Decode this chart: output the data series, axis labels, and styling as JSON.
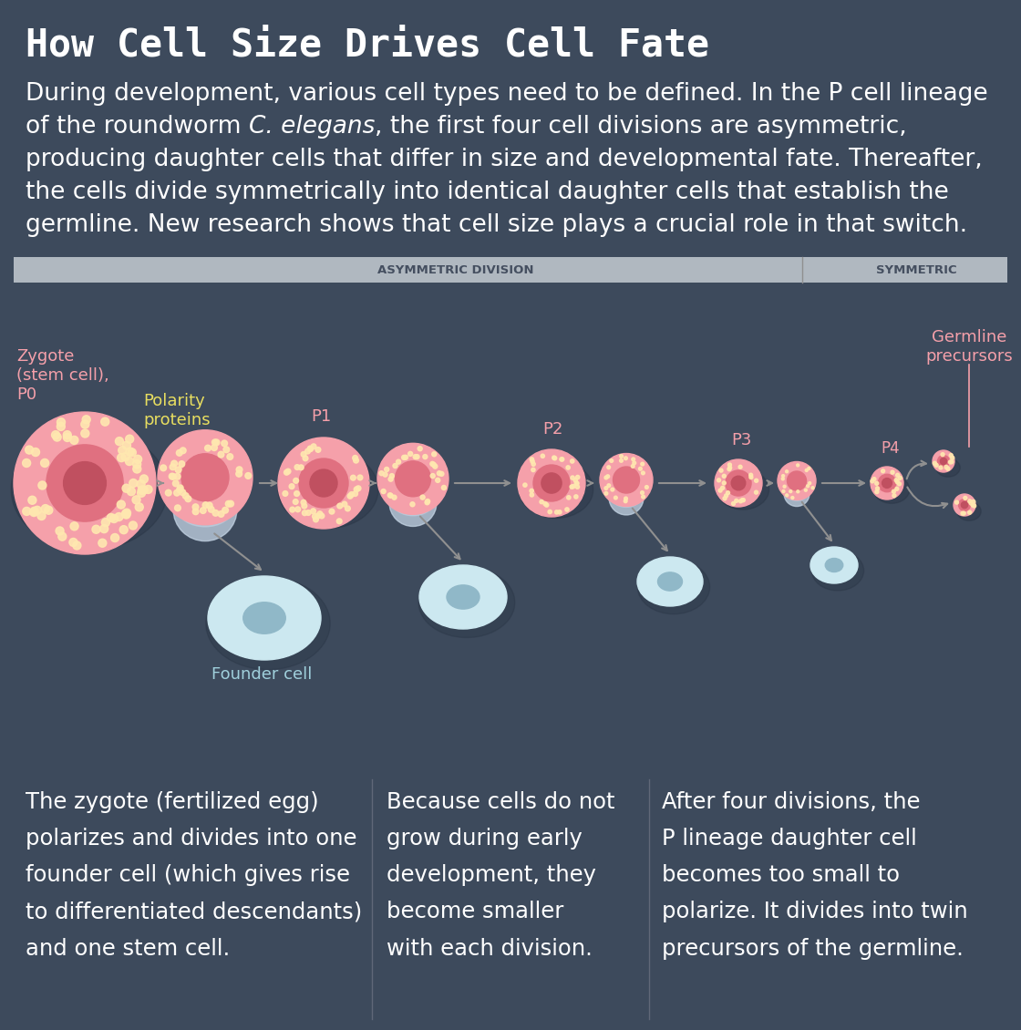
{
  "bg_color": "#3d4a5c",
  "title": "How Cell Size Drives Cell Fate",
  "title_color": "#ffffff",
  "title_fontsize": 30,
  "body_lines": [
    [
      [
        "During development, various cell types need to be defined. In the P cell lineage",
        false
      ]
    ],
    [
      [
        "of the roundworm ",
        false
      ],
      [
        "C. elegans",
        true
      ],
      [
        ", the first four cell divisions are asymmetric,",
        false
      ]
    ],
    [
      [
        "producing daughter cells that differ in size and developmental fate. Thereafter,",
        false
      ]
    ],
    [
      [
        "the cells divide symmetrically into identical daughter cells that establish the",
        false
      ]
    ],
    [
      [
        "germline. New research shows that cell size plays a crucial role in that switch.",
        false
      ]
    ]
  ],
  "body_color": "#ffffff",
  "body_fontsize": 19,
  "asym_label": "ASYMMETRIC DIVISION",
  "sym_label": "SYMMETRIC",
  "banner_color": "#b0b8c0",
  "banner_text_color": "#454f60",
  "stem_outer": "#f5a0aa",
  "stem_mid": "#e07080",
  "stem_nucleus": "#c05060",
  "dot_color": "#ffe8b0",
  "polarity_bottom": "#c5d5e5",
  "founder_outer": "#cce8f0",
  "founder_inner": "#90b8c8",
  "arrow_color": "#909090",
  "label_pink": "#f5a0aa",
  "label_yellow": "#e8de60",
  "label_blue": "#a0d0dc",
  "caption_color": "#ffffff",
  "caption_fontsize": 17.5,
  "divider_color": "#606878",
  "zygote_label": "Zygote\n(stem cell),\nP0",
  "polarity_label": "Polarity\nproteins",
  "germline_label": "Germline\nprecursors",
  "founder_label": "Founder cell",
  "caption1": "The zygote (fertilized egg)\npolarizes and divides into one\nfounder cell (which gives rise\nto differentiated descendants)\nand one stem cell.",
  "caption2": "Because cells do not\ngrow during early\ndevelopment, they\nbecome smaller\nwith each division.",
  "caption3": "After four divisions, the\nP lineage daughter cell\nbecomes too small to\npolarize. It divides into twin\nprecursors of the germline."
}
